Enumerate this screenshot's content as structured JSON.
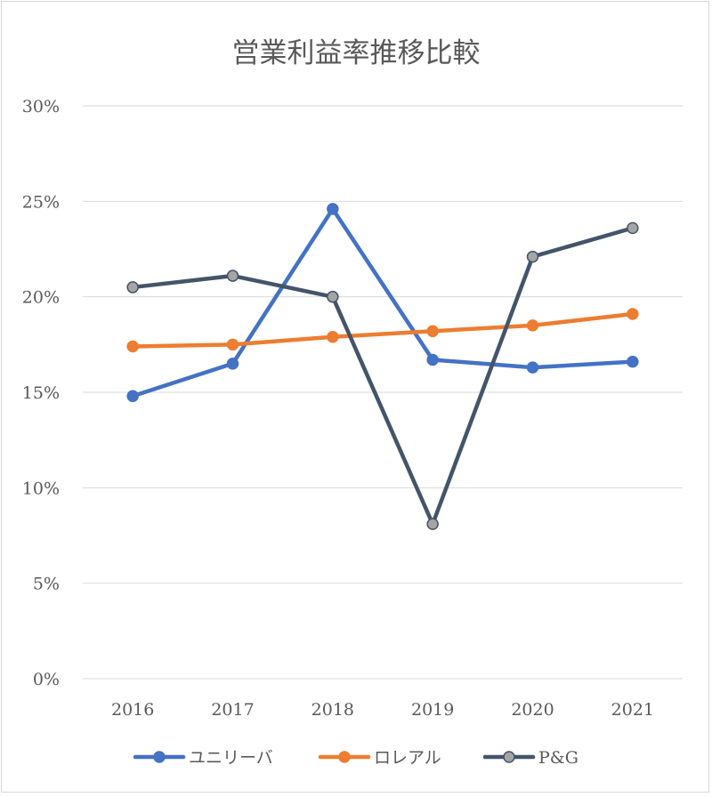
{
  "chart_data": {
    "type": "line",
    "title": "営業利益率推移比較",
    "xlabel": "",
    "ylabel": "",
    "categories": [
      "2016",
      "2017",
      "2018",
      "2019",
      "2020",
      "2021"
    ],
    "ylim": [
      0,
      30
    ],
    "yticks": [
      0,
      5,
      10,
      15,
      20,
      25,
      30
    ],
    "ytick_labels": [
      "0%",
      "5%",
      "10%",
      "15%",
      "20%",
      "25%",
      "30%"
    ],
    "grid": true,
    "legend_position": "bottom",
    "series": [
      {
        "name": "ユニリーバ",
        "color": "#4472c4",
        "marker_fill": "#4472c4",
        "values": [
          14.8,
          16.5,
          24.6,
          16.7,
          16.3,
          16.6
        ]
      },
      {
        "name": "ロレアル",
        "color": "#ed7d31",
        "marker_fill": "#ed7d31",
        "values": [
          17.4,
          17.5,
          17.9,
          18.2,
          18.5,
          19.1
        ]
      },
      {
        "name": "P&G",
        "color": "#44546a",
        "marker_fill": "#a5a5a5",
        "values": [
          20.5,
          21.1,
          20.0,
          8.1,
          22.1,
          23.6
        ]
      }
    ]
  }
}
